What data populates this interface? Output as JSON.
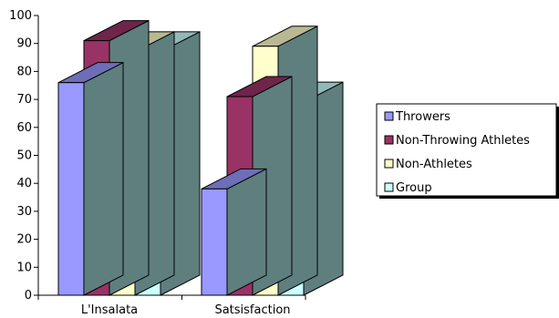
{
  "chart_data": {
    "type": "bar",
    "style": "3d-clustered",
    "categories": [
      "L'Insalata",
      "Satsisfaction"
    ],
    "series": [
      {
        "name": "Throwers",
        "values": [
          76,
          38
        ],
        "color": "#9999ff"
      },
      {
        "name": "Non-Throwing Athletes",
        "values": [
          91,
          71
        ],
        "color": "#993366"
      },
      {
        "name": "Non-Athletes",
        "values": [
          87,
          89
        ],
        "color": "#ffffcc"
      },
      {
        "name": "Group",
        "values": [
          87,
          69
        ],
        "color": "#ccffff"
      }
    ],
    "title": "",
    "xlabel": "",
    "ylabel": "",
    "ylim": [
      0,
      100
    ],
    "yticks": [
      0,
      10,
      20,
      30,
      40,
      50,
      60,
      70,
      80,
      90,
      100
    ],
    "grid": false,
    "legend_position": "right"
  }
}
